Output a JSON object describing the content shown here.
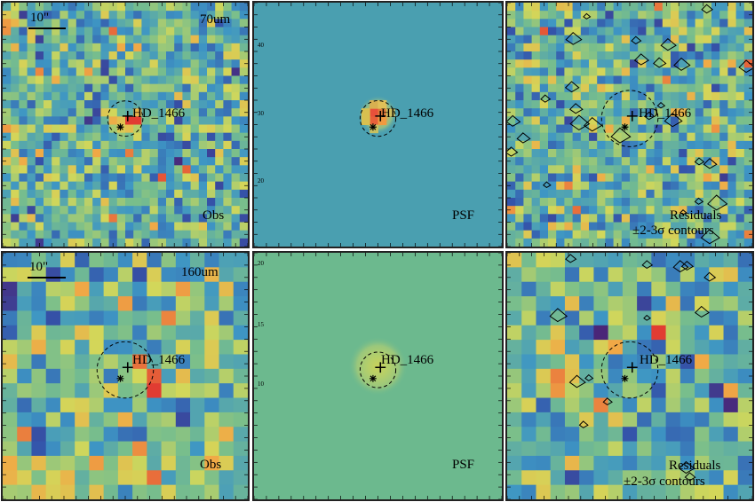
{
  "rows": [
    {
      "band": "70um",
      "scalebar_label": "10\"",
      "seed": 11,
      "cols": 30,
      "rows": 30,
      "obs": {
        "label": "Obs",
        "source_label": "HD_1466"
      },
      "psf": {
        "label": "PSF",
        "source_label": "HD_1466",
        "axis_ticks": [
          "20",
          "30",
          "40"
        ]
      },
      "res": {
        "label_line1": "Residuals",
        "label_line2": "±2-3σ contours",
        "source_label": "HD_1466"
      }
    },
    {
      "band": "160um",
      "scalebar_label": "10\"",
      "seed": 23,
      "cols": 17,
      "rows": 17,
      "obs": {
        "label": "Obs",
        "source_label": "HD_1466"
      },
      "psf": {
        "label": "PSF",
        "source_label": "HD_1466",
        "axis_ticks": [
          "10",
          "15",
          "20"
        ]
      },
      "res": {
        "label_line1": "Residuals",
        "label_line2": "±2-3σ contours",
        "source_label": "HD_1466"
      }
    }
  ],
  "colors": {
    "psf_bg_top": "#4a9fb0",
    "psf_bg_bottom": "#6cb98e",
    "peak": "#e0443a"
  }
}
